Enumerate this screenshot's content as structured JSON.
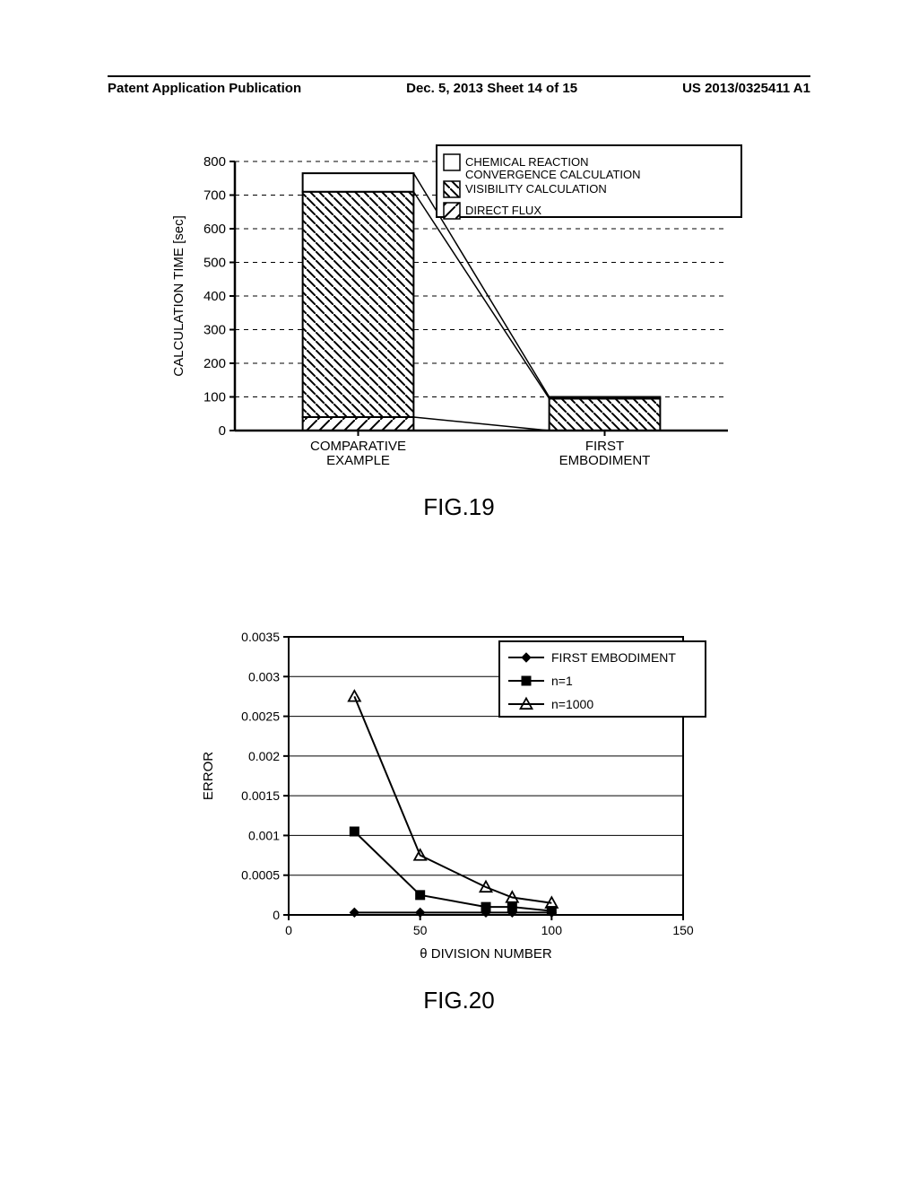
{
  "header": {
    "left": "Patent Application Publication",
    "center": "Dec. 5, 2013  Sheet 14 of 15",
    "right": "US 2013/0325411 A1"
  },
  "fig19": {
    "label": "FIG.19",
    "type": "stacked-bar",
    "ylabel": "CALCULATION  TIME [sec]",
    "ylim": [
      0,
      800
    ],
    "ytick_step": 100,
    "categories": [
      "COMPARATIVE\nEXAMPLE",
      "FIRST\nEMBODIMENT"
    ],
    "stacks": [
      {
        "name": "DIRECT  FLUX",
        "values": [
          40,
          0
        ],
        "pattern": "diag-sparse"
      },
      {
        "name": "VISIBILITY  CALCULATION",
        "values": [
          670,
          95
        ],
        "pattern": "diag-dense"
      },
      {
        "name": "CHEMICAL  REACTION\nCONVERGENCE  CALCULATION",
        "values": [
          55,
          5
        ],
        "pattern": "none"
      }
    ],
    "legend_items": [
      {
        "swatch": "none",
        "label": "CHEMICAL  REACTION\nCONVERGENCE  CALCULATION"
      },
      {
        "swatch": "diag-dense",
        "label": "VISIBILITY  CALCULATION"
      },
      {
        "swatch": "diag-sparse",
        "label": "DIRECT  FLUX"
      }
    ],
    "bar_width": 0.45,
    "colors": {
      "axis": "#000000",
      "grid": "#000000",
      "bg": "#ffffff"
    },
    "label_fontsize": 15,
    "tick_fontsize": 15,
    "legend_fontsize": 13
  },
  "fig20": {
    "label": "FIG.20",
    "type": "line",
    "xlabel": "θ  DIVISION  NUMBER",
    "ylabel": "ERROR",
    "xlim": [
      0,
      150
    ],
    "xtick_step": 50,
    "ylim": [
      0,
      0.0035
    ],
    "ytick_step": 0.0005,
    "yticks_labels": [
      "0",
      "0.0005",
      "0.001",
      "0.0015",
      "0.002",
      "0.0025",
      "0.003",
      "0.0035"
    ],
    "series": [
      {
        "name": "FIRST  EMBODIMENT",
        "marker": "diamond-filled",
        "points": [
          [
            25,
            3e-05
          ],
          [
            50,
            3e-05
          ],
          [
            75,
            3e-05
          ],
          [
            85,
            3e-05
          ],
          [
            100,
            3e-05
          ]
        ]
      },
      {
        "name": "n=1",
        "marker": "square-filled",
        "points": [
          [
            25,
            0.00105
          ],
          [
            50,
            0.00025
          ],
          [
            75,
            0.0001
          ],
          [
            85,
            0.0001
          ],
          [
            100,
            5e-05
          ]
        ]
      },
      {
        "name": "n=1000",
        "marker": "triangle-open",
        "points": [
          [
            25,
            0.00275
          ],
          [
            50,
            0.00075
          ],
          [
            75,
            0.00035
          ],
          [
            85,
            0.00022
          ],
          [
            100,
            0.00015
          ]
        ]
      }
    ],
    "colors": {
      "axis": "#000000",
      "grid": "#000000",
      "bg": "#ffffff",
      "line": "#000000"
    },
    "label_fontsize": 15,
    "tick_fontsize": 14,
    "legend_fontsize": 14
  }
}
